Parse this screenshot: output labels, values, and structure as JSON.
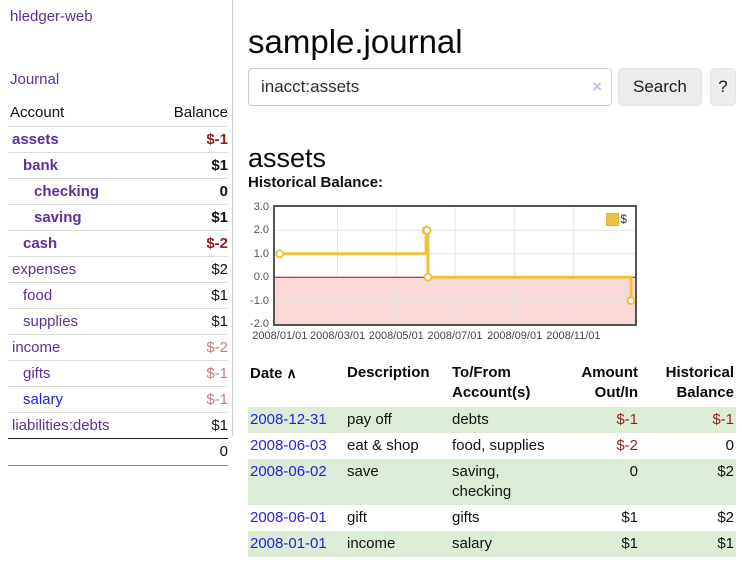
{
  "colors": {
    "link_purple": "#5e2f9d",
    "link_blue": "#2222dd",
    "negative_strong": "#8e1f1f",
    "negative_soft": "#c17d7d",
    "row_stripe_green": "#dcecd7",
    "series_yellow": "#edc240",
    "negative_region_pink": "#f9d8d8",
    "zero_line_red": "#8b1a1a",
    "frame_gray": "#545454",
    "grid_gray": "#e6e6e6"
  },
  "app": {
    "title": "hledger-web"
  },
  "sidebar": {
    "journal_link": "Journal",
    "accounts_header": {
      "account": "Account",
      "balance": "Balance"
    },
    "accounts": [
      {
        "name": "assets",
        "depth": 1,
        "bold": true,
        "tone": "purple",
        "balance": "$-1",
        "balance_tone": "negative-strong"
      },
      {
        "name": "bank",
        "depth": 2,
        "bold": true,
        "tone": "purple",
        "balance": "$1",
        "balance_tone": "normal"
      },
      {
        "name": "checking",
        "depth": 3,
        "bold": true,
        "tone": "purple",
        "balance": "0",
        "balance_tone": "normal"
      },
      {
        "name": "saving",
        "depth": 3,
        "bold": true,
        "tone": "purple",
        "balance": "$1",
        "balance_tone": "normal"
      },
      {
        "name": "cash",
        "depth": 2,
        "bold": true,
        "tone": "purple",
        "balance": "$-2",
        "balance_tone": "negative-strong"
      },
      {
        "name": "expenses",
        "depth": 1,
        "bold": false,
        "tone": "purple",
        "balance": "$2",
        "balance_tone": "normal"
      },
      {
        "name": "food",
        "depth": 2,
        "bold": false,
        "tone": "purple",
        "balance": "$1",
        "balance_tone": "normal"
      },
      {
        "name": "supplies",
        "depth": 2,
        "bold": false,
        "tone": "purple",
        "balance": "$1",
        "balance_tone": "normal"
      },
      {
        "name": "income",
        "depth": 1,
        "bold": false,
        "tone": "purple",
        "balance": "$-2",
        "balance_tone": "negative-soft"
      },
      {
        "name": "gifts",
        "depth": 2,
        "bold": false,
        "tone": "purple",
        "balance": "$-1",
        "balance_tone": "negative-soft"
      },
      {
        "name": "salary",
        "depth": 2,
        "bold": false,
        "tone": "blue",
        "balance": "$-1",
        "balance_tone": "negative-soft"
      },
      {
        "name": "liabilities:debts",
        "depth": 1,
        "bold": false,
        "tone": "purple",
        "balance": "$1",
        "balance_tone": "normal"
      }
    ],
    "total": "0"
  },
  "header": {
    "title": "sample.journal"
  },
  "search": {
    "value": "inacct:assets",
    "clear_icon": "×",
    "button_label": "Search",
    "help_label": "?"
  },
  "account_page": {
    "title": "assets",
    "chart_label": "Historical Balance:"
  },
  "chart_data": {
    "type": "line",
    "title": "Historical Balance:",
    "step": true,
    "grid": true,
    "legend_position": "top-right",
    "x_domain": [
      "2007-12-27",
      "2009-01-04"
    ],
    "ylim": [
      -2,
      3
    ],
    "y_ticks": [
      3.0,
      2.0,
      1.0,
      0.0,
      -1.0,
      -2.0
    ],
    "y_tick_labels": [
      "3.0",
      "2.0",
      "1.0",
      "0.0",
      "-1.0",
      "-2.0"
    ],
    "x_ticks": [
      {
        "date": "2008-01-01",
        "label": "2008/01/01"
      },
      {
        "date": "2008-03-01",
        "label": "2008/03/01"
      },
      {
        "date": "2008-05-01",
        "label": "2008/05/01"
      },
      {
        "date": "2008-07-01",
        "label": "2008/07/01"
      },
      {
        "date": "2008-09-01",
        "label": "2008/09/01"
      },
      {
        "date": "2008-11-01",
        "label": "2008/11/01"
      }
    ],
    "series": [
      {
        "name": "$",
        "color": "#edc240",
        "points": [
          {
            "x": "2008-01-01",
            "y": 1
          },
          {
            "x": "2008-06-01",
            "y": 2
          },
          {
            "x": "2008-06-02",
            "y": 2
          },
          {
            "x": "2008-06-03",
            "y": 0
          },
          {
            "x": "2008-12-31",
            "y": -1
          }
        ]
      }
    ]
  },
  "register": {
    "sort_indicator": "∧",
    "columns": [
      "Date",
      "Description",
      "To/From Account(s)",
      "Amount Out/In",
      "Historical Balance"
    ],
    "rows": [
      {
        "date": "2008-12-31",
        "description": "pay off",
        "accounts": "debts",
        "amount": "$-1",
        "amount_negative": true,
        "balance": "$-1",
        "balance_negative": true,
        "striped": true
      },
      {
        "date": "2008-06-03",
        "description": "eat & shop",
        "accounts": "food, supplies",
        "amount": "$-2",
        "amount_negative": true,
        "balance": "0",
        "balance_negative": false,
        "striped": false
      },
      {
        "date": "2008-06-02",
        "description": "save",
        "accounts": "saving, checking",
        "amount": "0",
        "amount_negative": false,
        "balance": "$2",
        "balance_negative": false,
        "striped": true
      },
      {
        "date": "2008-06-01",
        "description": "gift",
        "accounts": "gifts",
        "amount": "$1",
        "amount_negative": false,
        "balance": "$2",
        "balance_negative": false,
        "striped": false
      },
      {
        "date": "2008-01-01",
        "description": "income",
        "accounts": "salary",
        "amount": "$1",
        "amount_negative": false,
        "balance": "$1",
        "balance_negative": false,
        "striped": true
      }
    ]
  }
}
